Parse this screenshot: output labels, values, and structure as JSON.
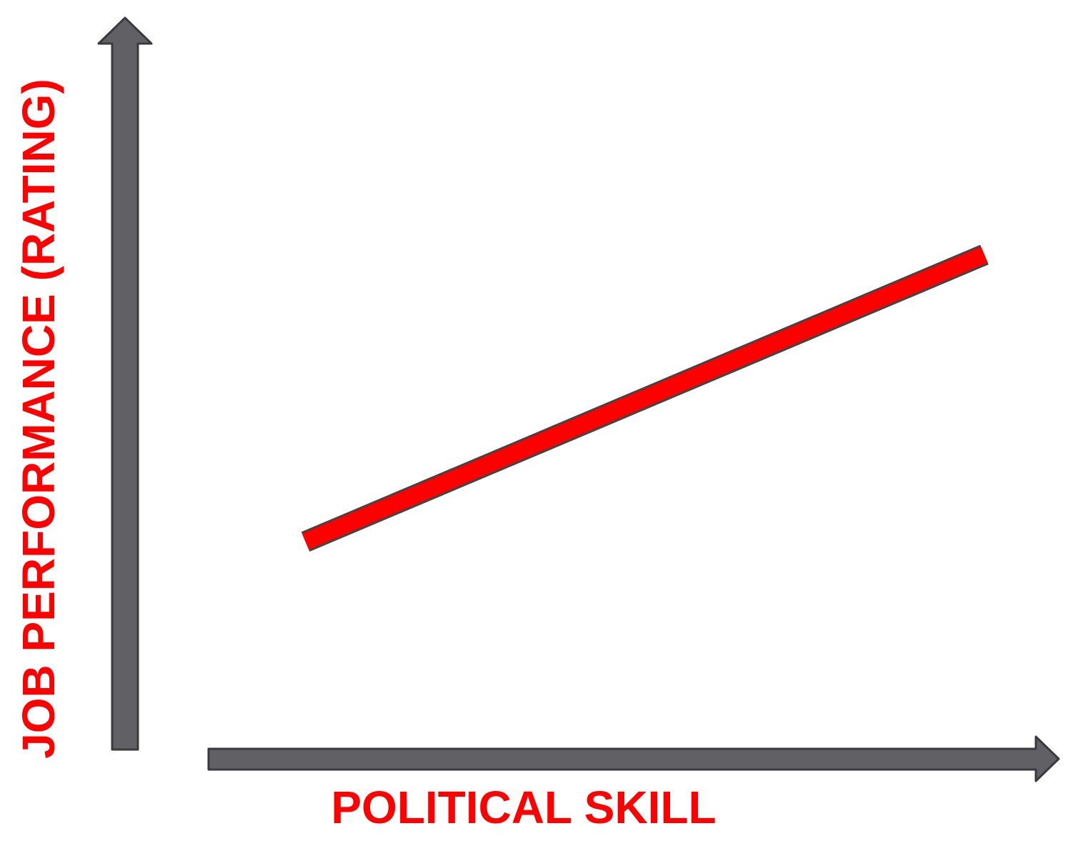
{
  "chart_data": {
    "type": "line",
    "title": "",
    "xlabel": "POLITICAL SKILL",
    "ylabel": "JOB PERFORMANCE (RATING)",
    "grid": false,
    "xlim": [
      0,
      100
    ],
    "ylim": [
      0,
      100
    ],
    "series": [
      {
        "x": [
          21,
          100
        ],
        "y": [
          31,
          72
        ]
      }
    ],
    "colors": {
      "label": "#ff0000",
      "line": "#ff0000",
      "line_outline": "#444444",
      "axis": "#606065",
      "axis_outline": "#3a3a3f"
    }
  }
}
